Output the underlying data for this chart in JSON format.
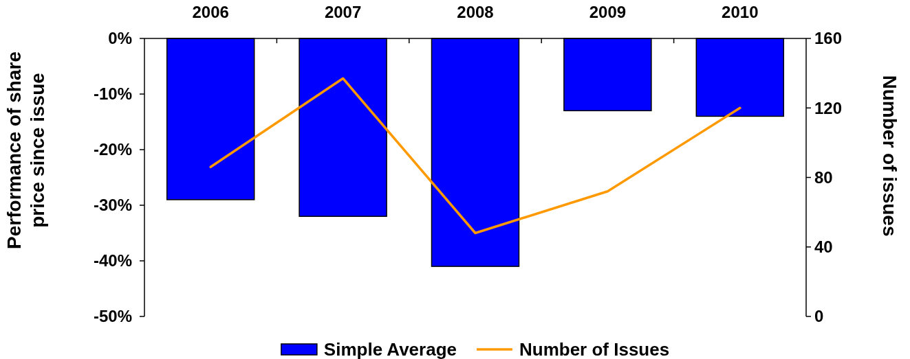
{
  "chart_data": {
    "type": "bar",
    "categories": [
      "2006",
      "2007",
      "2008",
      "2009",
      "2010"
    ],
    "series": [
      {
        "name": "Simple Average",
        "color": "#0000ff",
        "values": [
          -29,
          -32,
          -41,
          -13,
          -14
        ]
      },
      {
        "name": "Number of Issues",
        "type": "line",
        "axis": "y2",
        "color": "#ff9900",
        "values": [
          86,
          137,
          48,
          72,
          120
        ]
      }
    ],
    "ylabel": "Performance of share price since issue",
    "y2label": "Number of issues",
    "ylim": [
      -50,
      0
    ],
    "yticks": [
      {
        "value": -50,
        "label": "-50%"
      },
      {
        "value": -40,
        "label": "-40%"
      },
      {
        "value": -30,
        "label": "-30%"
      },
      {
        "value": -20,
        "label": "-20%"
      },
      {
        "value": -10,
        "label": "-10%"
      },
      {
        "value": 0,
        "label": "0%"
      }
    ],
    "y2lim": [
      0,
      160
    ],
    "y2ticks": [
      0,
      40,
      80,
      120,
      160
    ],
    "grid": false,
    "legend": "bottom",
    "marker": "none",
    "line_style": "solid"
  }
}
